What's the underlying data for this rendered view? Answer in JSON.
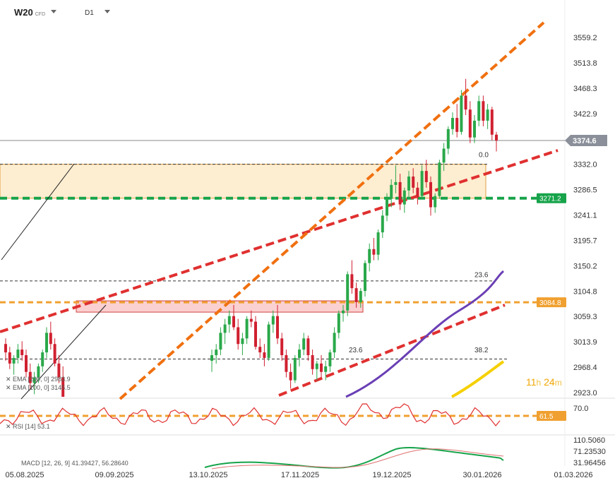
{
  "header": {
    "symbol": "W20",
    "symbol_suffix": "CFD",
    "timeframe": "D1"
  },
  "timer": {
    "hours": "11",
    "h": "h",
    "minutes": "24",
    "m": "m"
  },
  "chart_data": {
    "type": "candlestick",
    "y_ticks": [
      "3559.2",
      "3513.8",
      "3468.3",
      "3422.9",
      "3332.0",
      "3286.5",
      "3241.1",
      "3195.7",
      "3150.2",
      "3104.8",
      "3059.3",
      "3013.9",
      "2968.4",
      "2923.0"
    ],
    "x_ticks": [
      "05.08.2025",
      "09.09.2025",
      "13.10.2025",
      "17.11.2025",
      "19.12.2025",
      "30.01.2026",
      "01.03.2026"
    ],
    "last_price": "3374.6",
    "price_tags": [
      {
        "label": "3271.2",
        "color": "#16a34a",
        "value": 3271.2
      },
      {
        "label": "3084.8",
        "color": "#f0a030",
        "value": 3084.8
      },
      {
        "label": "61.5",
        "color": "#f0a030"
      }
    ],
    "fib_labels": [
      "0.0",
      "23.6",
      "23.6",
      "38.2"
    ],
    "indicators": {
      "ema200": {
        "label": "EMA [200, 0]",
        "value": "2983.9",
        "color": "#f5d000"
      },
      "ema100": {
        "label": "EMA [100, 0]",
        "value": "3145.5",
        "color": "#6a3fb5"
      },
      "rsi": {
        "label": "RSI [14]",
        "value": "53.1",
        "level": "70.0"
      },
      "macd": {
        "label": "MACD [12, 26, 9]",
        "value1": "41.39427",
        "value2": "56.28640",
        "ticks": [
          "110.5060",
          "71.23530",
          "31.96456"
        ]
      }
    },
    "candles": [
      [
        3010,
        3020,
        2980,
        2995
      ],
      [
        2995,
        3005,
        2965,
        2975
      ],
      [
        2975,
        2990,
        2955,
        2985
      ],
      [
        2985,
        3010,
        2975,
        3000
      ],
      [
        3000,
        3015,
        2980,
        2990
      ],
      [
        2990,
        3000,
        2950,
        2960
      ],
      [
        2960,
        2975,
        2930,
        2940
      ],
      [
        2940,
        2960,
        2920,
        2950
      ],
      [
        2950,
        2975,
        2940,
        2970
      ],
      [
        2970,
        3000,
        2960,
        2995
      ],
      [
        2995,
        3040,
        2985,
        3030
      ],
      [
        3030,
        3050,
        3000,
        3010
      ],
      [
        3010,
        3020,
        2970,
        2975
      ],
      [
        2975,
        2990,
        2940,
        2950
      ],
      [
        2950,
        2970,
        2900,
        2915
      ]
    ],
    "candles_right": [
      [
        2980,
        3000,
        2960,
        2990
      ],
      [
        2990,
        3010,
        2975,
        3000
      ],
      [
        3000,
        3040,
        2990,
        3030
      ],
      [
        3030,
        3055,
        3010,
        3045
      ],
      [
        3045,
        3070,
        3030,
        3060
      ],
      [
        3060,
        3080,
        3035,
        3040
      ],
      [
        3040,
        3055,
        3000,
        3010
      ],
      [
        3010,
        3030,
        2990,
        3020
      ],
      [
        3020,
        3060,
        3010,
        3055
      ],
      [
        3055,
        3070,
        3040,
        3050
      ],
      [
        3050,
        3060,
        3000,
        3005
      ],
      [
        3005,
        3020,
        2985,
        2995
      ],
      [
        2995,
        3010,
        2970,
        2985
      ],
      [
        2985,
        3050,
        2980,
        3045
      ],
      [
        3045,
        3070,
        3030,
        3060
      ],
      [
        3060,
        3080,
        3010,
        3020
      ],
      [
        3020,
        3030,
        2980,
        2990
      ],
      [
        2990,
        3000,
        2950,
        2960
      ],
      [
        2960,
        2975,
        2930,
        2945
      ],
      [
        2945,
        2990,
        2940,
        2985
      ],
      [
        2985,
        3010,
        2970,
        3000
      ],
      [
        3000,
        3030,
        2990,
        3020
      ],
      [
        3020,
        3025,
        2980,
        2990
      ],
      [
        2990,
        3000,
        2955,
        2965
      ],
      [
        2965,
        2980,
        2945,
        2975
      ],
      [
        2975,
        2990,
        2950,
        2960
      ],
      [
        2960,
        2980,
        2945,
        2970
      ],
      [
        2970,
        3000,
        2960,
        2995
      ],
      [
        2995,
        3040,
        2985,
        3030
      ],
      [
        3030,
        3070,
        3020,
        3065
      ],
      [
        3065,
        3080,
        3050,
        3070
      ],
      [
        3070,
        3140,
        3060,
        3135
      ],
      [
        3135,
        3160,
        3100,
        3110
      ],
      [
        3110,
        3120,
        3075,
        3085
      ],
      [
        3085,
        3110,
        3075,
        3105
      ],
      [
        3105,
        3160,
        3095,
        3155
      ],
      [
        3155,
        3190,
        3140,
        3180
      ],
      [
        3180,
        3200,
        3160,
        3170
      ],
      [
        3170,
        3215,
        3160,
        3210
      ],
      [
        3210,
        3250,
        3200,
        3240
      ],
      [
        3240,
        3280,
        3230,
        3270
      ],
      [
        3270,
        3305,
        3255,
        3295
      ],
      [
        3295,
        3330,
        3280,
        3300
      ],
      [
        3300,
        3315,
        3250,
        3260
      ],
      [
        3260,
        3290,
        3245,
        3285
      ],
      [
        3285,
        3320,
        3270,
        3310
      ],
      [
        3310,
        3325,
        3280,
        3290
      ],
      [
        3290,
        3300,
        3260,
        3275
      ],
      [
        3275,
        3330,
        3270,
        3320
      ],
      [
        3320,
        3340,
        3290,
        3300
      ],
      [
        3300,
        3310,
        3240,
        3255
      ],
      [
        3255,
        3280,
        3245,
        3275
      ],
      [
        3275,
        3340,
        3270,
        3335
      ],
      [
        3335,
        3370,
        3320,
        3360
      ],
      [
        3360,
        3400,
        3350,
        3395
      ],
      [
        3395,
        3425,
        3385,
        3415
      ],
      [
        3415,
        3440,
        3380,
        3390
      ],
      [
        3390,
        3465,
        3385,
        3455
      ],
      [
        3455,
        3485,
        3420,
        3430
      ],
      [
        3430,
        3445,
        3370,
        3380
      ],
      [
        3380,
        3420,
        3370,
        3410
      ],
      [
        3410,
        3455,
        3400,
        3445
      ],
      [
        3445,
        3455,
        3400,
        3410
      ],
      [
        3410,
        3440,
        3395,
        3430
      ],
      [
        3430,
        3435,
        3375,
        3385
      ],
      [
        3385,
        3390,
        3355,
        3374.6
      ]
    ]
  }
}
